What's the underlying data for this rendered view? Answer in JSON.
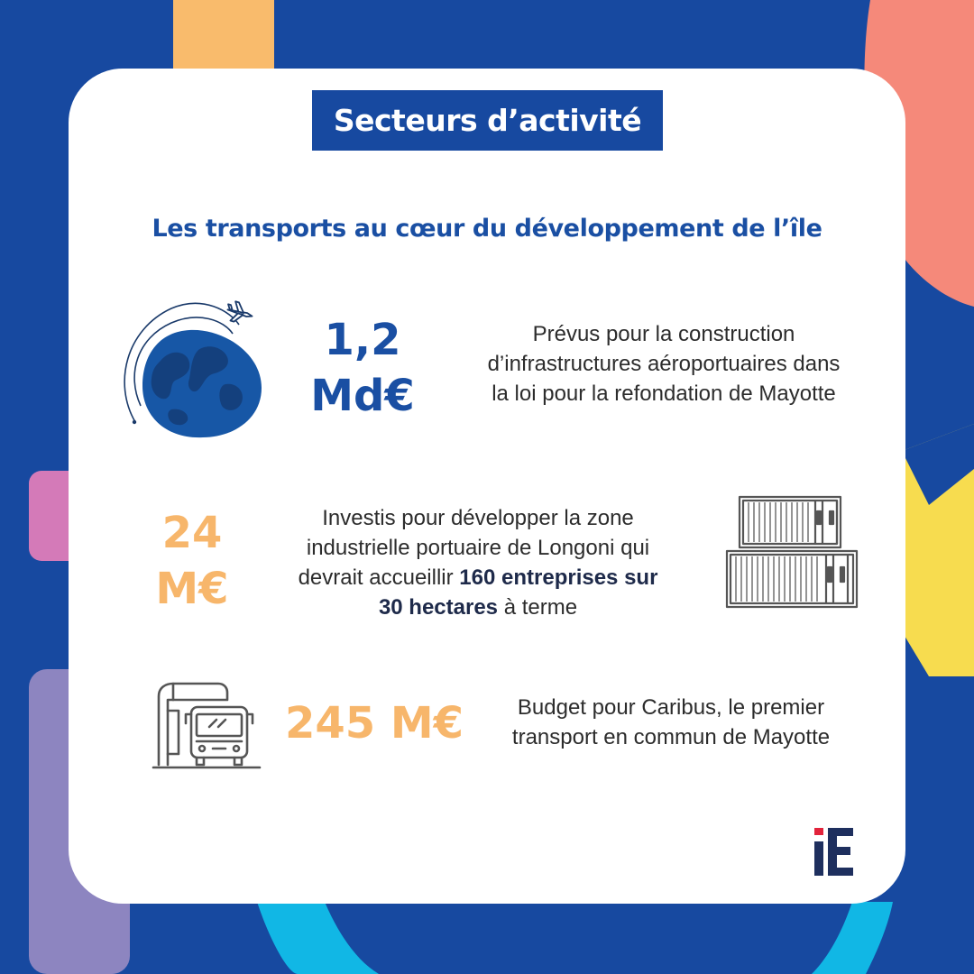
{
  "header": {
    "title": "Secteurs d’activité"
  },
  "subtitle": "Les transports au cœur du développement de l’île",
  "items": [
    {
      "icon": "globe-plane-icon",
      "value_line1": "1,2",
      "value_line2": "Md€",
      "description_lines": [
        "Prévus pour la construction",
        "d’infrastructures aéroportuaires dans",
        "la loi pour la refondation de Mayotte"
      ]
    },
    {
      "icon": "shipping-containers-icon",
      "value_line1": "24",
      "value_line2": "M€",
      "description_line1": "Investis pour développer la zone",
      "description_line2": "industrielle portuaire de Longoni qui",
      "description_line3_plain": "devrait accueillir ",
      "description_line3_bold": "160 entreprises sur",
      "description_line4_bold": "30 hectares",
      "description_line4_plain": " à terme"
    },
    {
      "icon": "bus-station-icon",
      "value": "245 M€",
      "description_lines": [
        "Budget pour Caribus, le premier",
        "transport en commun de Mayotte"
      ]
    }
  ],
  "logo": {
    "icon": "ie-logo-icon",
    "text": "iE"
  },
  "colors": {
    "background": "#1749a0",
    "accent_blue": "#1a4fa3",
    "accent_orange": "#f7b66b",
    "salmon": "#f5897a",
    "yellow": "#f7dc4f",
    "pink": "#d47ab8",
    "lavender": "#8d85c0",
    "cyan": "#11b7e5"
  }
}
